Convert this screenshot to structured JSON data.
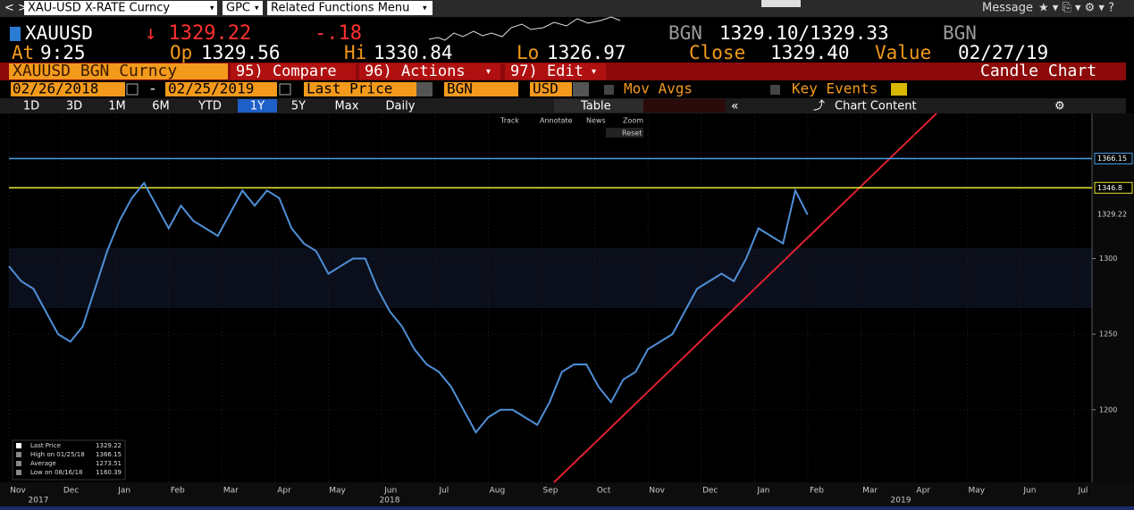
{
  "toolbar": {
    "security": "XAU-USD X-RATE Curncy",
    "gpc": "GPC",
    "menu": "Related Functions Menu",
    "message": "Message"
  },
  "quote": {
    "ticker": "XAUUSD",
    "last": "↓ 1329.22",
    "change": "-.18",
    "bid_source": "BGN",
    "bid_ask": "1329.10/1329.33",
    "ask_source": "BGN",
    "fields": [
      {
        "label": "At",
        "value": "9:25"
      },
      {
        "label": "Op",
        "value": "1329.56"
      },
      {
        "label": "Hi",
        "value": "1330.84"
      },
      {
        "label": "Lo",
        "value": "1326.97"
      },
      {
        "label": "Close",
        "value": "1329.40"
      },
      {
        "label": "Value",
        "value": "02/27/19"
      }
    ]
  },
  "menubar": {
    "security": "XAUUSD BGN Curncy",
    "items": [
      "95) Compare",
      "96) Actions",
      "97) Edit"
    ],
    "chart_type": "Candle Chart"
  },
  "settings": {
    "start": "02/26/2018",
    "end": "02/25/2019",
    "field": "Last Price",
    "source": "BGN",
    "currency": "USD",
    "mov_avgs": "Mov Avgs",
    "key_events": "Key Events"
  },
  "periods": [
    "1D",
    "3D",
    "1M",
    "6M",
    "YTD",
    "1Y",
    "5Y",
    "Max",
    "Daily"
  ],
  "table": "Table",
  "chart_content": "Chart Content",
  "tools": [
    "Track",
    "Annotate",
    "News",
    "Zoom"
  ],
  "reset": "Reset",
  "chart_data": {
    "type": "line",
    "color": "#4f8fd6",
    "values": [
      1295,
      1285,
      1280,
      1265,
      1250,
      1245,
      1255,
      1280,
      1305,
      1325,
      1340,
      1350,
      1335,
      1320,
      1335,
      1325,
      1320,
      1315,
      1330,
      1345,
      1335,
      1345,
      1340,
      1320,
      1310,
      1305,
      1290,
      1295,
      1300,
      1300,
      1280,
      1265,
      1255,
      1240,
      1230,
      1225,
      1215,
      1200,
      1185,
      1195,
      1200,
      1200,
      1195,
      1190,
      1205,
      1225,
      1230,
      1230,
      1215,
      1205,
      1220,
      1225,
      1240,
      1245,
      1250,
      1265,
      1280,
      1285,
      1290,
      1285,
      1300,
      1320,
      1315,
      1310,
      1345,
      1329
    ],
    "ylim": [
      1152,
      1396
    ],
    "yticks": [
      1200,
      1250,
      1300
    ],
    "grid": true,
    "months": [
      "Nov",
      "Dec",
      "Jan",
      "Feb",
      "Mar",
      "Apr",
      "May",
      "Jun",
      "Jul",
      "Aug",
      "Sep",
      "Oct",
      "Nov",
      "Dec",
      "Jan",
      "Feb",
      "Mar",
      "Apr",
      "May",
      "Jun",
      "Jul"
    ],
    "years": [
      "2017",
      "2018",
      "2019"
    ],
    "hlines": [
      {
        "value": 1366.15,
        "color": "#4a9eea"
      },
      {
        "value": 1346.8,
        "color": "#e8e82a"
      }
    ],
    "last_label": 1329.22,
    "legend": [
      {
        "label": "Last Price",
        "value": 1329.22
      },
      {
        "label": "High on 01/25/18",
        "value": 1366.15
      },
      {
        "label": "Average",
        "value": 1273.51
      },
      {
        "label": "Low on 08/16/18",
        "value": 1160.39
      }
    ]
  }
}
